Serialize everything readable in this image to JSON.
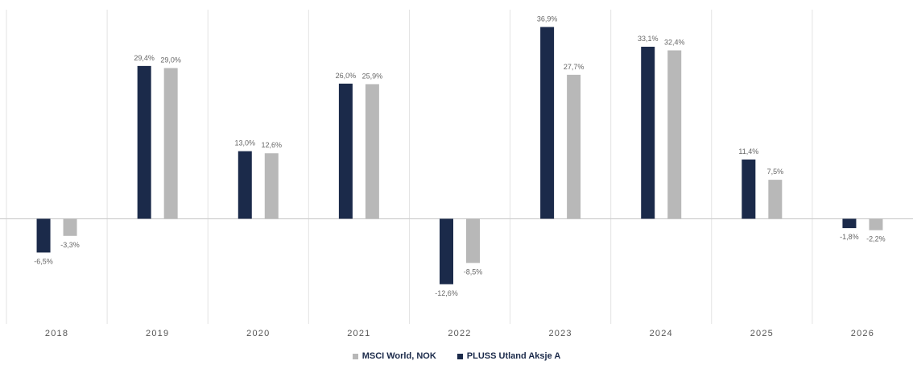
{
  "chart_data": {
    "type": "bar",
    "title": "",
    "xlabel": "",
    "ylabel": "",
    "categories": [
      "2018",
      "2019",
      "2020",
      "2021",
      "2022",
      "2023",
      "2024",
      "2025",
      "2026"
    ],
    "series": [
      {
        "name": "PLUSS Utland Aksje A",
        "color": "#1b2a4a",
        "values": [
          -6.5,
          29.4,
          13.0,
          26.0,
          -12.6,
          36.9,
          33.1,
          11.4,
          -1.8
        ],
        "labels": [
          "-6,5%",
          "29,4%",
          "13,0%",
          "26,0%",
          "-12,6%",
          "36,9%",
          "33,1%",
          "11,4%",
          "-1,8%"
        ]
      },
      {
        "name": "MSCI World, NOK",
        "color": "#b8b8b8",
        "values": [
          -3.3,
          29.0,
          12.6,
          25.9,
          -8.5,
          27.7,
          32.4,
          7.5,
          -2.2
        ],
        "labels": [
          "-3,3%",
          "29,0%",
          "12,6%",
          "25,9%",
          "-8,5%",
          "27,7%",
          "32,4%",
          "7,5%",
          "-2,2%"
        ]
      }
    ],
    "grid": true,
    "legend_position": "bottom-center",
    "legend_order": [
      "MSCI World, NOK",
      "PLUSS Utland Aksje A"
    ]
  }
}
